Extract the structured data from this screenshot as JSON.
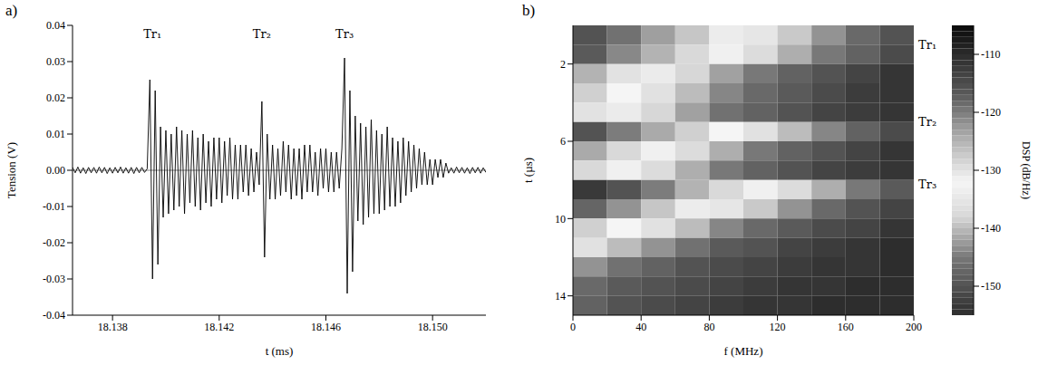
{
  "chart_data": [
    {
      "type": "line",
      "title": "a)",
      "x_label": "t (ms)",
      "y_label": "Tension (V)",
      "color": "#000000",
      "xlim": [
        18.1365,
        18.152
      ],
      "xticks": [
        18.138,
        18.142,
        18.146,
        {
          "value": 18.15,
          "label": "18.150"
        }
      ],
      "ylim": [
        -0.04,
        0.04
      ],
      "yticks": [
        0.04,
        0.03,
        0.02,
        0.01,
        {
          "value": 0,
          "label": "0.00"
        },
        -0.01,
        -0.02,
        -0.03,
        -0.04
      ],
      "annotations": [
        {
          "text": "Tr₁",
          "x": 18.1395
        },
        {
          "text": "Tr₂",
          "x": 18.1436
        },
        {
          "text": "Tr₃",
          "x": 18.1467
        }
      ],
      "x": [
        18.1365,
        18.1366,
        18.1367,
        18.1368,
        18.1369,
        18.137,
        18.1371,
        18.1372,
        18.1373,
        18.1374,
        18.1375,
        18.1376,
        18.1377,
        18.1378,
        18.1379,
        18.138,
        18.1381,
        18.1382,
        18.1383,
        18.1384,
        18.1385,
        18.1386,
        18.1387,
        18.1388,
        18.1389,
        18.139,
        18.1391,
        18.1392,
        18.1393,
        18.1394,
        18.1395,
        18.1396,
        18.1397,
        18.1398,
        18.1399,
        18.14,
        18.1401,
        18.1402,
        18.1403,
        18.1404,
        18.1405,
        18.1406,
        18.1407,
        18.1408,
        18.1409,
        18.141,
        18.1411,
        18.1412,
        18.1413,
        18.1414,
        18.1415,
        18.1416,
        18.1417,
        18.1418,
        18.1419,
        18.142,
        18.1421,
        18.1422,
        18.1423,
        18.1424,
        18.1425,
        18.1426,
        18.1427,
        18.1428,
        18.1429,
        18.143,
        18.1431,
        18.1432,
        18.1433,
        18.1434,
        18.1435,
        18.1436,
        18.1437,
        18.1438,
        18.1439,
        18.144,
        18.1441,
        18.1442,
        18.1443,
        18.1444,
        18.1445,
        18.1446,
        18.1447,
        18.1448,
        18.1449,
        18.145,
        18.1451,
        18.1452,
        18.1453,
        18.1454,
        18.1455,
        18.1456,
        18.1457,
        18.1458,
        18.1459,
        18.146,
        18.1461,
        18.1462,
        18.1463,
        18.1464,
        18.1465,
        18.1466,
        18.1467,
        18.1468,
        18.1469,
        18.147,
        18.1471,
        18.1472,
        18.1473,
        18.1474,
        18.1475,
        18.1476,
        18.1477,
        18.1478,
        18.1479,
        18.148,
        18.1481,
        18.1482,
        18.1483,
        18.1484,
        18.1485,
        18.1486,
        18.1487,
        18.1488,
        18.1489,
        18.149,
        18.1491,
        18.1492,
        18.1493,
        18.1494,
        18.1495,
        18.1496,
        18.1497,
        18.1498,
        18.1499,
        18.15,
        18.1501,
        18.1502,
        18.1503,
        18.1504,
        18.1505,
        18.1506,
        18.1507,
        18.1508,
        18.1509,
        18.151,
        18.1511,
        18.1512,
        18.1513,
        18.1514,
        18.1515,
        18.1516,
        18.1517,
        18.1518,
        18.1519,
        18.152
      ],
      "values": [
        0.0008,
        -0.0007,
        0.0009,
        -0.0008,
        0.0007,
        -0.0009,
        0.0008,
        -0.0007,
        0.0008,
        -0.0008,
        0.0009,
        -0.0007,
        0.0008,
        -0.0009,
        0.0007,
        -0.0008,
        0.0008,
        -0.0007,
        0.0009,
        -0.0008,
        0.0007,
        -0.0008,
        0.0008,
        -0.0009,
        0.0008,
        -0.0007,
        0.0008,
        -0.0006,
        0.0004,
        0.025,
        -0.03,
        0.022,
        -0.026,
        0.012,
        -0.013,
        0.011,
        -0.012,
        0.01,
        -0.011,
        0.012,
        -0.01,
        0.011,
        -0.012,
        0.01,
        -0.009,
        0.011,
        -0.01,
        0.009,
        -0.011,
        0.01,
        -0.009,
        0.008,
        -0.01,
        0.009,
        -0.008,
        0.009,
        -0.009,
        0.008,
        -0.007,
        0.009,
        -0.008,
        0.007,
        -0.008,
        0.007,
        -0.006,
        0.007,
        -0.007,
        0.006,
        -0.006,
        0.005,
        -0.004,
        0.019,
        -0.024,
        0.01,
        -0.008,
        0.007,
        -0.008,
        0.006,
        -0.007,
        0.008,
        -0.006,
        0.007,
        -0.008,
        0.006,
        -0.007,
        0.006,
        -0.008,
        0.007,
        -0.006,
        0.007,
        -0.006,
        0.005,
        -0.007,
        0.006,
        -0.005,
        0.006,
        -0.006,
        0.005,
        -0.006,
        0.005,
        -0.005,
        0.006,
        0.031,
        -0.034,
        0.022,
        -0.028,
        0.015,
        -0.014,
        0.013,
        -0.015,
        0.012,
        -0.013,
        0.014,
        -0.012,
        0.011,
        -0.012,
        0.01,
        -0.011,
        0.012,
        -0.01,
        0.009,
        -0.01,
        0.008,
        -0.009,
        0.009,
        -0.007,
        0.008,
        -0.006,
        0.007,
        -0.005,
        0.006,
        -0.004,
        0.005,
        -0.004,
        0.003,
        -0.004,
        0.003,
        -0.002,
        0.003,
        -0.002,
        0.002,
        -0.0008,
        0.0007,
        -0.0008,
        0.0009,
        -0.0007,
        0.0008,
        -0.0008,
        0.0007,
        -0.0009,
        0.0008,
        -0.0007,
        0.0008,
        -0.0008,
        0.0007,
        -0.0006
      ]
    },
    {
      "type": "heatmap",
      "title": "b)",
      "x_label": "f (MHz)",
      "y_label": "t (µs)",
      "xlim": [
        0,
        200
      ],
      "xticks": [
        0,
        40,
        80,
        120,
        160,
        200
      ],
      "ylim": [
        0,
        15
      ],
      "yticks": [
        2,
        6,
        10,
        14
      ],
      "x_bins": [
        0,
        20,
        40,
        60,
        80,
        100,
        120,
        140,
        160,
        180,
        200
      ],
      "y_bins": [
        0,
        1,
        2,
        3,
        4,
        5,
        6,
        7,
        8,
        9,
        10,
        11,
        12,
        13,
        14,
        15
      ],
      "cells": [
        [
          -116,
          -119,
          -123,
          -127,
          -131,
          -135,
          -139,
          -143,
          -147,
          -150
        ],
        [
          -117,
          -121,
          -125,
          -129,
          -133,
          -137,
          -141,
          -145,
          -148,
          -151
        ],
        [
          -125,
          -130,
          -134,
          -138,
          -142,
          -145,
          -148,
          -150,
          -152,
          -154
        ],
        [
          -128,
          -132,
          -136,
          -140,
          -144,
          -147,
          -149,
          -151,
          -153,
          -154
        ],
        [
          -130,
          -134,
          -138,
          -142,
          -146,
          -148,
          -150,
          -152,
          -153,
          -154
        ],
        [
          -116,
          -120,
          -124,
          -128,
          -132,
          -136,
          -140,
          -144,
          -148,
          -151
        ],
        [
          -124,
          -129,
          -133,
          -137,
          -141,
          -145,
          -148,
          -150,
          -152,
          -154
        ],
        [
          -129,
          -133,
          -137,
          -141,
          -145,
          -148,
          -150,
          -152,
          -153,
          -154
        ],
        [
          -112,
          -116,
          -120,
          -125,
          -129,
          -133,
          -137,
          -141,
          -145,
          -149
        ],
        [
          -118,
          -122,
          -127,
          -131,
          -135,
          -139,
          -143,
          -147,
          -150,
          -152
        ],
        [
          -128,
          -132,
          -136,
          -140,
          -144,
          -147,
          -149,
          -151,
          -152,
          -154
        ],
        [
          -136,
          -140,
          -143,
          -146,
          -149,
          -150,
          -152,
          -153,
          -154,
          -155
        ],
        [
          -143,
          -146,
          -148,
          -150,
          -151,
          -152,
          -153,
          -154,
          -154,
          -155
        ],
        [
          -147,
          -149,
          -150,
          -151,
          -152,
          -153,
          -154,
          -154,
          -155,
          -155
        ],
        [
          -148,
          -150,
          -151,
          -152,
          -153,
          -154,
          -154,
          -155,
          -155,
          -155
        ]
      ],
      "colorbar": {
        "label": "DSP (dB/Hz)",
        "range": [
          -155,
          -105
        ],
        "ticks": [
          -110,
          -120,
          -130,
          -140,
          -150
        ]
      },
      "annotations": [
        {
          "text": "Tr₁",
          "y": 1.0
        },
        {
          "text": "Tr₂",
          "y": 5.0
        },
        {
          "text": "Tr₃",
          "y": 8.2
        }
      ]
    }
  ]
}
